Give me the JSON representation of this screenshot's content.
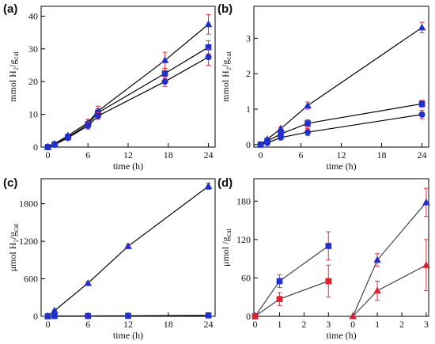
{
  "chart_data": [
    {
      "type": "line",
      "title": "(a)",
      "xlabel": "time (h)",
      "ylabel": "mmol H₂/g",
      "ylabel_sub": "cat",
      "xlim": [
        -1,
        25
      ],
      "ylim": [
        0,
        43
      ],
      "xticks": [
        0,
        6,
        12,
        18,
        24
      ],
      "yticks": [
        0,
        10,
        20,
        30,
        40
      ],
      "line_color": "#000000",
      "error_color": "#e0303a",
      "series": [
        {
          "marker": "triangle",
          "color": "#1f2fd0",
          "x": [
            0,
            1,
            3,
            6,
            7.5,
            17.5,
            24
          ],
          "values": [
            0,
            1,
            3.5,
            7.5,
            11,
            26.5,
            37.5
          ],
          "errors": [
            0,
            0.3,
            0.5,
            1,
            1.5,
            2.5,
            3
          ]
        },
        {
          "marker": "square",
          "color": "#1f2fd0",
          "x": [
            0,
            1,
            3,
            6,
            7.5,
            17.5,
            24
          ],
          "values": [
            0,
            0.8,
            3,
            7,
            10.5,
            22.5,
            30.5
          ],
          "errors": [
            0,
            0.2,
            0.4,
            0.8,
            1.2,
            1.5,
            2
          ]
        },
        {
          "marker": "circle",
          "color": "#1f2fd0",
          "x": [
            0,
            1,
            3,
            6,
            7.5,
            17.5,
            24
          ],
          "values": [
            0,
            0.7,
            2.8,
            6.5,
            9.5,
            20,
            27.5
          ],
          "errors": [
            0,
            0.3,
            0.5,
            1,
            1,
            1.5,
            2.5
          ]
        }
      ]
    },
    {
      "type": "line",
      "title": "(b)",
      "xlabel": "time (h)",
      "ylabel": "mmol H₂/g",
      "ylabel_sub": "cat",
      "xlim": [
        -1,
        25
      ],
      "ylim": [
        -0.07,
        3.9
      ],
      "xticks": [
        0,
        6,
        12,
        18,
        24
      ],
      "yticks": [
        0,
        1,
        2,
        3
      ],
      "line_color": "#000000",
      "error_color": "#e0303a",
      "series": [
        {
          "marker": "triangle",
          "color": "#1f2fd0",
          "x": [
            0,
            1,
            3,
            7,
            24
          ],
          "values": [
            0,
            0.15,
            0.45,
            1.1,
            3.3
          ],
          "errors": [
            0,
            0.03,
            0.05,
            0.1,
            0.15
          ]
        },
        {
          "marker": "square",
          "color": "#1f2fd0",
          "x": [
            0,
            1,
            3,
            7,
            24
          ],
          "values": [
            0,
            0.1,
            0.3,
            0.6,
            1.15
          ],
          "errors": [
            0,
            0.03,
            0.05,
            0.1,
            0.1
          ]
        },
        {
          "marker": "circle",
          "color": "#1f2fd0",
          "x": [
            0,
            1,
            3,
            7,
            24
          ],
          "values": [
            0,
            0.05,
            0.2,
            0.35,
            0.85
          ],
          "errors": [
            0,
            0.03,
            0.05,
            0.1,
            0.12
          ]
        }
      ]
    },
    {
      "type": "line",
      "title": "(c)",
      "xlabel": "time (h)",
      "ylabel": "μmol H₂/g",
      "ylabel_sub": "cat",
      "xlim": [
        -1,
        25
      ],
      "ylim": [
        0,
        2200
      ],
      "xticks": [
        0,
        6,
        12,
        18,
        24
      ],
      "yticks": [
        0,
        600,
        1200,
        1800
      ],
      "line_color": "#000000",
      "error_color": "#e0303a",
      "series": [
        {
          "marker": "triangle",
          "color": "#1f2fd0",
          "x": [
            0,
            1,
            6,
            12,
            24
          ],
          "values": [
            0,
            90,
            530,
            1120,
            2080
          ],
          "errors": [
            0,
            10,
            20,
            30,
            50
          ]
        },
        {
          "marker": "square",
          "color": "#1f2fd0",
          "x": [
            0,
            1,
            6,
            12,
            24
          ],
          "values": [
            0,
            5,
            5,
            8,
            15
          ],
          "errors": [
            0,
            2,
            2,
            3,
            5
          ]
        }
      ]
    },
    {
      "type": "line",
      "title": "(d)",
      "xlabel": "time (h)",
      "ylabel": "μmol /g",
      "ylabel_sub": "cat",
      "xlim": [
        -0.05,
        7.1
      ],
      "ylim": [
        0,
        215
      ],
      "xticks": [
        0,
        1,
        2,
        3,
        {
          "value": 4,
          "label": "0"
        },
        {
          "value": 5,
          "label": "1"
        },
        {
          "value": 6,
          "label": "2"
        },
        {
          "value": 7,
          "label": "3"
        }
      ],
      "yticks": [
        0,
        60,
        120,
        180
      ],
      "line_color": "#444444",
      "error_color": "#e0303a",
      "series": [
        {
          "marker": "square",
          "color": "#1f2fd0",
          "x": [
            0,
            1,
            3
          ],
          "values": [
            0,
            55,
            110
          ],
          "errors": [
            0,
            10,
            22
          ]
        },
        {
          "marker": "square",
          "color": "#e0202a",
          "x": [
            0,
            1,
            3
          ],
          "values": [
            0,
            27,
            55
          ],
          "errors": [
            0,
            10,
            25
          ]
        },
        {
          "marker": "triangle",
          "color": "#1f2fd0",
          "x": [
            4,
            5,
            7
          ],
          "values": [
            0,
            88,
            178
          ],
          "errors": [
            0,
            10,
            22
          ]
        },
        {
          "marker": "triangle",
          "color": "#e0202a",
          "x": [
            4,
            5,
            7
          ],
          "values": [
            0,
            40,
            80
          ],
          "errors": [
            0,
            15,
            40
          ]
        }
      ]
    }
  ]
}
